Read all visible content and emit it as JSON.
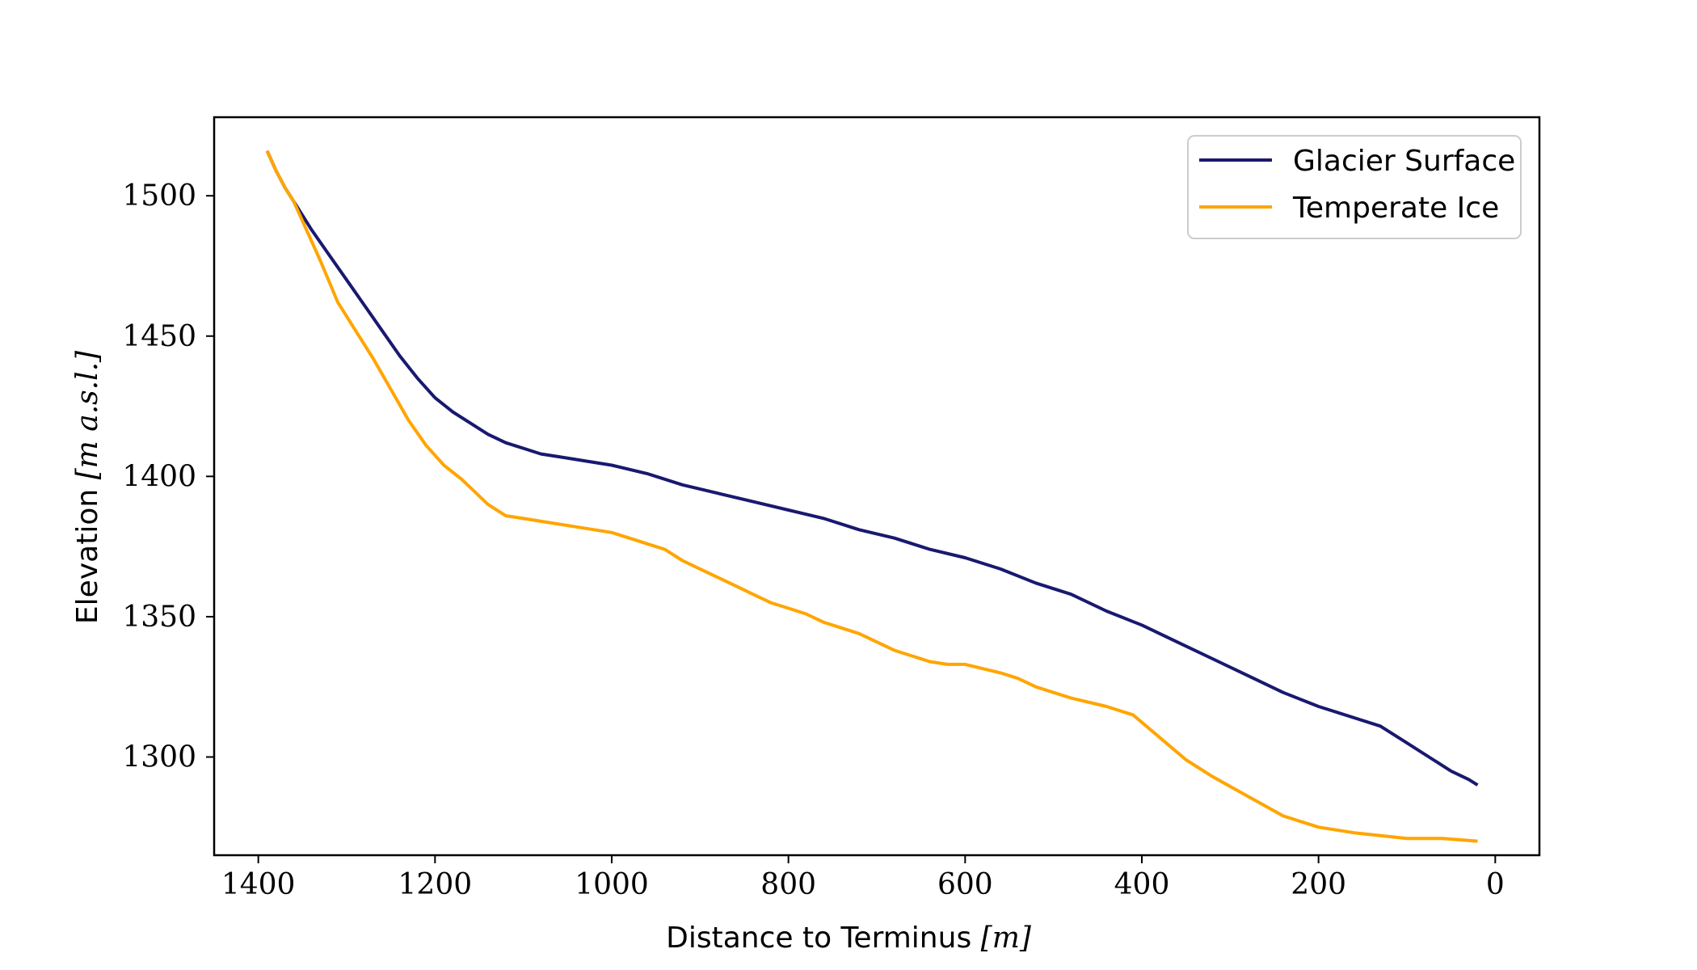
{
  "chart_data": {
    "type": "line",
    "xlabel": "Distance to Terminus",
    "xlabel_unit": "[m]",
    "ylabel": "Elevation",
    "ylabel_unit": "[m a.s.l.]",
    "xlim": [
      1450,
      -50
    ],
    "ylim": [
      1265,
      1528
    ],
    "x_inverted": true,
    "xticks": [
      1400,
      1200,
      1000,
      800,
      600,
      400,
      200,
      0
    ],
    "yticks": [
      1300,
      1350,
      1400,
      1450,
      1500
    ],
    "grid": false,
    "legend_position": "top-right",
    "series": [
      {
        "name": "Glacier Surface",
        "color": "#191970",
        "x": [
          1390,
          1380,
          1370,
          1360,
          1340,
          1320,
          1300,
          1280,
          1260,
          1240,
          1220,
          1200,
          1180,
          1160,
          1140,
          1120,
          1100,
          1080,
          1060,
          1040,
          1020,
          1000,
          960,
          920,
          880,
          840,
          800,
          760,
          720,
          680,
          640,
          600,
          560,
          520,
          480,
          440,
          400,
          360,
          320,
          280,
          240,
          200,
          160,
          130,
          100,
          70,
          50,
          30,
          20
        ],
        "y": [
          1516,
          1509,
          1503,
          1498,
          1488,
          1479,
          1470,
          1461,
          1452,
          1443,
          1435,
          1428,
          1423,
          1419,
          1415,
          1412,
          1410,
          1408,
          1407,
          1406,
          1405,
          1404,
          1401,
          1397,
          1394,
          1391,
          1388,
          1385,
          1381,
          1378,
          1374,
          1371,
          1367,
          1362,
          1358,
          1352,
          1347,
          1341,
          1335,
          1329,
          1323,
          1318,
          1314,
          1311,
          1305,
          1299,
          1295,
          1292,
          1290
        ]
      },
      {
        "name": "Temperate Ice",
        "color": "#FFA500",
        "x": [
          1390,
          1380,
          1370,
          1360,
          1350,
          1330,
          1310,
          1290,
          1270,
          1250,
          1230,
          1210,
          1190,
          1170,
          1160,
          1140,
          1120,
          1100,
          1080,
          1060,
          1040,
          1020,
          1000,
          980,
          960,
          940,
          920,
          900,
          880,
          860,
          840,
          820,
          800,
          780,
          760,
          740,
          720,
          700,
          680,
          660,
          640,
          620,
          600,
          560,
          540,
          520,
          480,
          440,
          410,
          380,
          350,
          320,
          280,
          240,
          200,
          160,
          130,
          100,
          60,
          20
        ],
        "y": [
          1516,
          1509,
          1503,
          1498,
          1491,
          1477,
          1462,
          1452,
          1442,
          1431,
          1420,
          1411,
          1404,
          1399,
          1396,
          1390,
          1386,
          1385,
          1384,
          1383,
          1382,
          1381,
          1380,
          1378,
          1376,
          1374,
          1370,
          1367,
          1364,
          1361,
          1358,
          1355,
          1353,
          1351,
          1348,
          1346,
          1344,
          1341,
          1338,
          1336,
          1334,
          1333,
          1333,
          1330,
          1328,
          1325,
          1321,
          1318,
          1315,
          1307,
          1299,
          1293,
          1286,
          1279,
          1275,
          1273,
          1272,
          1271,
          1271,
          1270
        ]
      }
    ]
  }
}
